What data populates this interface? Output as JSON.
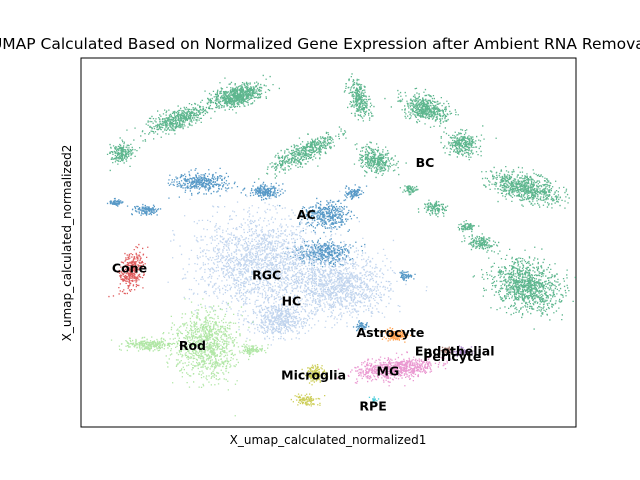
{
  "chart_data": {
    "type": "scatter",
    "title": "UMAP Calculated Based on Normalized Gene Expression after Ambient RNA Removal",
    "xlabel": "X_umap_calculated_normalized1",
    "ylabel": "X_umap_calculated_normalized2",
    "grid": false,
    "legend": "none",
    "xlim": [
      0,
      100
    ],
    "ylim": [
      0,
      100
    ],
    "clusters": [
      {
        "label": "BC",
        "color": "#279e68",
        "x": 69.5,
        "y": 71.5
      },
      {
        "label": "AC",
        "color": "#1f77b4",
        "x": 45.5,
        "y": 57.5
      },
      {
        "label": "RGC",
        "color": "#aec7e8",
        "x": 37.5,
        "y": 41.0
      },
      {
        "label": "HC",
        "color": "#aec7e8",
        "x": 42.5,
        "y": 34.0
      },
      {
        "label": "Cone",
        "color": "#d62728",
        "x": 9.8,
        "y": 43.0
      },
      {
        "label": "Rod",
        "color": "#98df8a",
        "x": 22.5,
        "y": 22.0
      },
      {
        "label": "Astrocyte",
        "color": "#ff7f0e",
        "x": 62.5,
        "y": 25.5
      },
      {
        "label": "Endothelial",
        "color": "#8c564b",
        "x": 75.5,
        "y": 20.5
      },
      {
        "label": "Pericyte",
        "color": "#9467bd",
        "x": 75.0,
        "y": 19.0
      },
      {
        "label": "MG",
        "color": "#e377c2",
        "x": 62.0,
        "y": 15.0
      },
      {
        "label": "Microglia",
        "color": "#bcbd22",
        "x": 47.0,
        "y": 14.0
      },
      {
        "label": "RPE",
        "color": "#17becf",
        "x": 59.0,
        "y": 5.5
      }
    ],
    "blobs": [
      {
        "cluster": "BC",
        "x": 31.5,
        "y": 90.0,
        "rx": 6.0,
        "ry": 3.0,
        "angle": -15,
        "n": 700
      },
      {
        "cluster": "BC",
        "x": 56.0,
        "y": 89.0,
        "rx": 2.0,
        "ry": 6.0,
        "angle": -20,
        "n": 300
      },
      {
        "cluster": "BC",
        "x": 69.5,
        "y": 86.5,
        "rx": 5.0,
        "ry": 3.5,
        "angle": 15,
        "n": 500
      },
      {
        "cluster": "BC",
        "x": 19.5,
        "y": 83.5,
        "rx": 7.0,
        "ry": 3.0,
        "angle": -20,
        "n": 500
      },
      {
        "cluster": "BC",
        "x": 8.0,
        "y": 74.5,
        "rx": 2.5,
        "ry": 3.0,
        "angle": 0,
        "n": 200
      },
      {
        "cluster": "BC",
        "x": 45.0,
        "y": 74.5,
        "rx": 8.0,
        "ry": 3.0,
        "angle": -25,
        "n": 500
      },
      {
        "cluster": "BC",
        "x": 59.5,
        "y": 72.5,
        "rx": 4.0,
        "ry": 3.5,
        "angle": 25,
        "n": 350
      },
      {
        "cluster": "BC",
        "x": 77.0,
        "y": 77.0,
        "rx": 3.5,
        "ry": 3.5,
        "angle": 0,
        "n": 300
      },
      {
        "cluster": "BC",
        "x": 89.5,
        "y": 65.0,
        "rx": 8.0,
        "ry": 4.0,
        "angle": 15,
        "n": 700
      },
      {
        "cluster": "BC",
        "x": 90.0,
        "y": 38.5,
        "rx": 8.0,
        "ry": 7.0,
        "angle": 20,
        "n": 1000
      },
      {
        "cluster": "BC",
        "x": 71.5,
        "y": 59.5,
        "rx": 2.5,
        "ry": 2.0,
        "angle": 0,
        "n": 120
      },
      {
        "cluster": "BC",
        "x": 78.0,
        "y": 54.5,
        "rx": 2.0,
        "ry": 1.2,
        "angle": 0,
        "n": 80
      },
      {
        "cluster": "BC",
        "x": 66.5,
        "y": 64.5,
        "rx": 1.5,
        "ry": 1.2,
        "angle": 0,
        "n": 60
      },
      {
        "cluster": "BC",
        "x": 80.5,
        "y": 50.0,
        "rx": 3.0,
        "ry": 2.0,
        "angle": 10,
        "n": 150
      },
      {
        "cluster": "AC",
        "x": 24.0,
        "y": 66.5,
        "rx": 6.0,
        "ry": 3.0,
        "angle": 0,
        "n": 350
      },
      {
        "cluster": "AC",
        "x": 37.0,
        "y": 64.0,
        "rx": 3.5,
        "ry": 2.0,
        "angle": 0,
        "n": 200
      },
      {
        "cluster": "AC",
        "x": 49.5,
        "y": 57.5,
        "rx": 5.0,
        "ry": 4.0,
        "angle": 0,
        "n": 350
      },
      {
        "cluster": "AC",
        "x": 49.0,
        "y": 47.5,
        "rx": 6.0,
        "ry": 3.5,
        "angle": 0,
        "n": 400
      },
      {
        "cluster": "AC",
        "x": 13.0,
        "y": 59.0,
        "rx": 2.5,
        "ry": 1.5,
        "angle": 0,
        "n": 120
      },
      {
        "cluster": "AC",
        "x": 7.0,
        "y": 61.0,
        "rx": 1.5,
        "ry": 1.0,
        "angle": 0,
        "n": 60
      },
      {
        "cluster": "AC",
        "x": 55.0,
        "y": 63.5,
        "rx": 2.0,
        "ry": 2.0,
        "angle": 0,
        "n": 100
      },
      {
        "cluster": "AC",
        "x": 65.5,
        "y": 41.0,
        "rx": 1.5,
        "ry": 1.5,
        "angle": 0,
        "n": 60
      },
      {
        "cluster": "AC",
        "x": 56.5,
        "y": 27.5,
        "rx": 1.5,
        "ry": 1.2,
        "angle": 0,
        "n": 50
      },
      {
        "cluster": "RGC",
        "x": 36.0,
        "y": 45.0,
        "rx": 14.0,
        "ry": 14.0,
        "angle": 0,
        "n": 1800
      },
      {
        "cluster": "RGC",
        "x": 52.0,
        "y": 38.5,
        "rx": 11.0,
        "ry": 9.0,
        "angle": 0,
        "n": 1200
      },
      {
        "cluster": "HC",
        "x": 40.0,
        "y": 29.0,
        "rx": 6.0,
        "ry": 4.5,
        "angle": 0,
        "n": 500
      },
      {
        "cluster": "Cone",
        "x": 10.0,
        "y": 42.5,
        "rx": 2.3,
        "ry": 6.0,
        "angle": 20,
        "n": 350
      },
      {
        "cluster": "Rod",
        "x": 25.0,
        "y": 22.5,
        "rx": 7.0,
        "ry": 10.0,
        "angle": 0,
        "n": 1000
      },
      {
        "cluster": "Rod",
        "x": 13.5,
        "y": 22.5,
        "rx": 5.0,
        "ry": 1.8,
        "angle": 0,
        "n": 250
      },
      {
        "cluster": "Rod",
        "x": 34.5,
        "y": 21.0,
        "rx": 2.5,
        "ry": 1.5,
        "angle": 0,
        "n": 100
      },
      {
        "cluster": "Astrocyte",
        "x": 63.5,
        "y": 25.0,
        "rx": 2.5,
        "ry": 1.5,
        "angle": 0,
        "n": 150
      },
      {
        "cluster": "Endothelial",
        "x": 74.0,
        "y": 21.0,
        "rx": 1.2,
        "ry": 1.0,
        "angle": 0,
        "n": 60
      },
      {
        "cluster": "Pericyte",
        "x": 76.5,
        "y": 20.5,
        "rx": 2.2,
        "ry": 1.2,
        "angle": 0,
        "n": 100
      },
      {
        "cluster": "MG",
        "x": 63.5,
        "y": 16.0,
        "rx": 9.0,
        "ry": 3.0,
        "angle": -5,
        "n": 700
      },
      {
        "cluster": "Microglia",
        "x": 47.0,
        "y": 14.5,
        "rx": 2.0,
        "ry": 2.5,
        "angle": 0,
        "n": 150
      },
      {
        "cluster": "Microglia",
        "x": 45.5,
        "y": 7.5,
        "rx": 2.5,
        "ry": 1.5,
        "angle": 0,
        "n": 100
      },
      {
        "cluster": "RPE",
        "x": 59.0,
        "y": 7.5,
        "rx": 0.8,
        "ry": 0.8,
        "angle": 0,
        "n": 20
      }
    ]
  }
}
